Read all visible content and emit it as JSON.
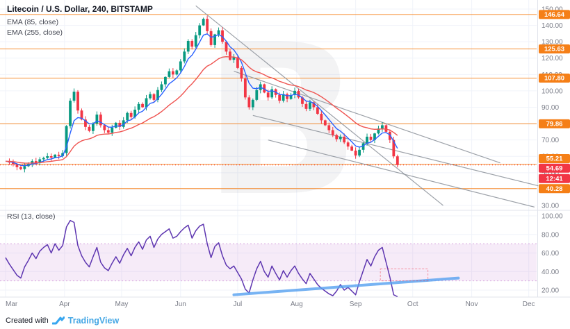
{
  "header": {
    "symbol_title": "Litecoin / U.S. Dollar, 240, BITSTAMP",
    "indicators": [
      {
        "label": "EMA (85, close)"
      },
      {
        "label": "EMA (255, close)"
      }
    ]
  },
  "rsi_header": {
    "label": "RSI (13, close)"
  },
  "footer": {
    "created_with": "Created with",
    "brand": "TradingView"
  },
  "price_axis": {
    "ticks": [
      150,
      140,
      130,
      120,
      110,
      100,
      90,
      80,
      70,
      60,
      50,
      40,
      30
    ],
    "level_badges": [
      146.64,
      125.63,
      107.8,
      79.86,
      55.21,
      40.28
    ],
    "last_price": 54.69,
    "countdown": "12:41"
  },
  "rsi_axis": {
    "ticks": [
      100,
      80,
      60,
      40,
      20
    ]
  },
  "time_axis": {
    "months": [
      "Mar",
      "Apr",
      "May",
      "Jun",
      "Jul",
      "Aug",
      "Sep",
      "Oct",
      "Nov",
      "Dec"
    ]
  },
  "colors": {
    "candle_up": "#089981",
    "candle_down": "#f23645",
    "ema_fast": "#2962ff",
    "ema_slow": "#ef5350",
    "level": "#f57f17",
    "rsi": "#5d35b0",
    "rsi_band_fill": "rgba(186,104,200,0.13)",
    "rsi_band_edge": "rgba(186,104,200,0.55)",
    "rsi_trendline": "#55a0f0",
    "trendline_gray": "#8b9099",
    "axis_text": "#787b86",
    "grid": "#f0f3fa",
    "watermark": "#131722"
  },
  "chart_data": {
    "type": "candlestick",
    "title": "Litecoin / U.S. Dollar, 240, BITSTAMP",
    "pair": "Litecoin / U.S. Dollar",
    "interval": "240",
    "exchange": "BITSTAMP",
    "sample_interval_days": 2,
    "start_month": "Mar",
    "ylim_price": [
      30,
      150
    ],
    "ylim_rsi": [
      0,
      100
    ],
    "closes": [
      57.0,
      56.2,
      55.1,
      53.4,
      52.2,
      54.0,
      55.3,
      57.1,
      56.0,
      58.2,
      59.0,
      60.1,
      59.2,
      61.0,
      60.2,
      62.0,
      78.5,
      94.0,
      99.5,
      88.0,
      82.5,
      78.0,
      75.5,
      80.0,
      85.5,
      79.0,
      76.0,
      74.5,
      77.5,
      80.5,
      78.0,
      82.0,
      86.5,
      84.0,
      88.5,
      92.0,
      90.0,
      95.5,
      98.0,
      94.5,
      100.5,
      104.0,
      108.5,
      112.0,
      110.0,
      112.5,
      118.0,
      124.0,
      130.5,
      127.0,
      134.0,
      140.0,
      144.0,
      136.5,
      128.0,
      134.5,
      137.0,
      130.0,
      124.0,
      119.0,
      120.5,
      114.0,
      107.5,
      96.0,
      90.0,
      94.5,
      100.5,
      104.0,
      99.0,
      96.0,
      101.0,
      97.5,
      94.0,
      98.0,
      95.0,
      97.5,
      100.0,
      96.0,
      92.0,
      89.0,
      93.0,
      90.0,
      86.0,
      82.0,
      79.0,
      76.0,
      73.0,
      70.5,
      72.0,
      68.5,
      66.0,
      63.5,
      60.5,
      64.0,
      68.0,
      72.0,
      70.0,
      74.0,
      77.0,
      79.0,
      75.0,
      70.0,
      60.0,
      54.69
    ],
    "rsi": [
      55,
      48,
      42,
      36,
      33,
      45,
      52,
      60,
      54,
      62,
      66,
      69,
      60,
      70,
      63,
      68,
      88,
      95,
      93,
      68,
      57,
      50,
      45,
      56,
      66,
      50,
      44,
      41,
      49,
      56,
      49,
      58,
      65,
      57,
      66,
      72,
      64,
      74,
      78,
      66,
      75,
      80,
      83,
      86,
      76,
      78,
      83,
      87,
      90,
      76,
      84,
      89,
      91,
      70,
      55,
      67,
      71,
      57,
      47,
      43,
      46,
      39,
      32,
      21,
      17,
      31,
      43,
      51,
      40,
      34,
      46,
      38,
      31,
      41,
      34,
      41,
      46,
      38,
      32,
      27,
      38,
      32,
      26,
      22,
      19,
      16,
      14,
      19,
      26,
      20,
      23,
      19,
      15,
      29,
      41,
      53,
      46,
      56,
      63,
      66,
      50,
      34,
      15,
      13
    ],
    "ema_fast": {
      "period": 85,
      "alpha": 0.3
    },
    "ema_slow": {
      "period": 255,
      "alpha": 0.09
    },
    "levels": [
      146.64,
      125.63,
      107.8,
      79.86,
      55.21,
      40.28
    ],
    "last_price": 54.69,
    "rsi_band": [
      30,
      70
    ],
    "trendlines_price": [
      {
        "d1": 100,
        "p1": 152,
        "d2": 230,
        "p2": 30
      },
      {
        "d1": 120,
        "p1": 112,
        "d2": 260,
        "p2": 56
      },
      {
        "d1": 130,
        "p1": 85,
        "d2": 280,
        "p2": 42
      },
      {
        "d1": 138,
        "p1": 70,
        "d2": 278,
        "p2": 29
      }
    ],
    "rsi_trendline": {
      "d1": 120,
      "r1": 15,
      "d2": 238,
      "r2": 33
    },
    "rsi_highlight_rect": {
      "d1": 197,
      "r1": 30,
      "d2": 222,
      "r2": 43
    }
  }
}
